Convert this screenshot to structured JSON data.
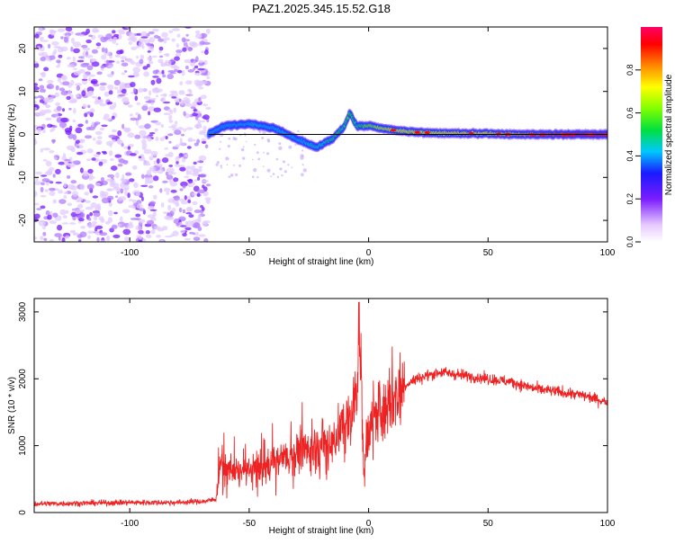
{
  "page": {
    "title": "PAZ1.2025.345.15.52.G18"
  },
  "chart_data": [
    {
      "type": "heatmap",
      "title": "PAZ1.2025.345.15.52.G18",
      "xlabel": "Height of straight line (km)",
      "ylabel": "Frequency (Hz)",
      "xlim": [
        -140,
        100
      ],
      "ylim": [
        -25,
        25
      ],
      "xticks": [
        -100,
        -50,
        0,
        50,
        100
      ],
      "yticks": [
        -20,
        -10,
        0,
        10,
        20
      ],
      "noise_region": {
        "x_range": [
          -140,
          -67
        ],
        "y_range": [
          -25,
          25
        ],
        "description_level": "low"
      },
      "ridge": {
        "x": [
          -67,
          -60,
          -50,
          -40,
          -30,
          -22,
          -15,
          -10,
          -8,
          -5,
          0,
          5,
          10,
          20,
          30,
          40,
          50,
          60,
          70,
          80,
          90,
          100
        ],
        "y": [
          0,
          2,
          2.5,
          1.5,
          -1,
          -3,
          -1,
          2,
          5,
          2,
          2,
          1.5,
          1,
          0.5,
          0.3,
          0.2,
          0.2,
          0,
          0,
          0,
          0,
          0
        ],
        "amplitude": [
          0.3,
          0.35,
          0.4,
          0.4,
          0.4,
          0.45,
          0.5,
          0.5,
          0.55,
          0.5,
          0.6,
          0.65,
          0.7,
          0.7,
          0.7,
          0.75,
          0.75,
          0.8,
          0.85,
          0.9,
          0.95,
          0.95
        ]
      },
      "colorbar": {
        "label": "Normalized spectral amplitude",
        "range": [
          0,
          1
        ],
        "ticks": [
          0.0,
          0.2,
          0.4,
          0.6,
          0.8
        ],
        "tick_labels": [
          "0.0",
          "0.2",
          "0.4",
          "0.6",
          "0.8"
        ],
        "colormap": "rainbow"
      }
    },
    {
      "type": "line",
      "title": "",
      "xlabel": "Height of straight line (km)",
      "ylabel": "SNR (10 * v/v)",
      "xlim": [
        -140,
        100
      ],
      "ylim": [
        0,
        3200
      ],
      "xticks": [
        -100,
        -50,
        0,
        50,
        100
      ],
      "yticks": [
        0,
        1000,
        2000,
        3000
      ],
      "color": "#ee2222",
      "series": [
        {
          "name": "SNR",
          "x": [
            -140,
            -120,
            -100,
            -80,
            -68,
            -64,
            -62,
            -60,
            -55,
            -50,
            -45,
            -40,
            -35,
            -30,
            -25,
            -20,
            -15,
            -10,
            -7,
            -5,
            -4,
            -2,
            0,
            5,
            10,
            15,
            20,
            25,
            30,
            40,
            50,
            60,
            70,
            80,
            90,
            100
          ],
          "y": [
            130,
            140,
            150,
            150,
            170,
            200,
            750,
            650,
            600,
            650,
            700,
            750,
            800,
            900,
            950,
            1000,
            1050,
            1350,
            1400,
            1900,
            3100,
            600,
            1250,
            1500,
            1700,
            1900,
            2000,
            2050,
            2100,
            2050,
            2000,
            1950,
            1850,
            1800,
            1750,
            1650
          ]
        }
      ]
    }
  ]
}
